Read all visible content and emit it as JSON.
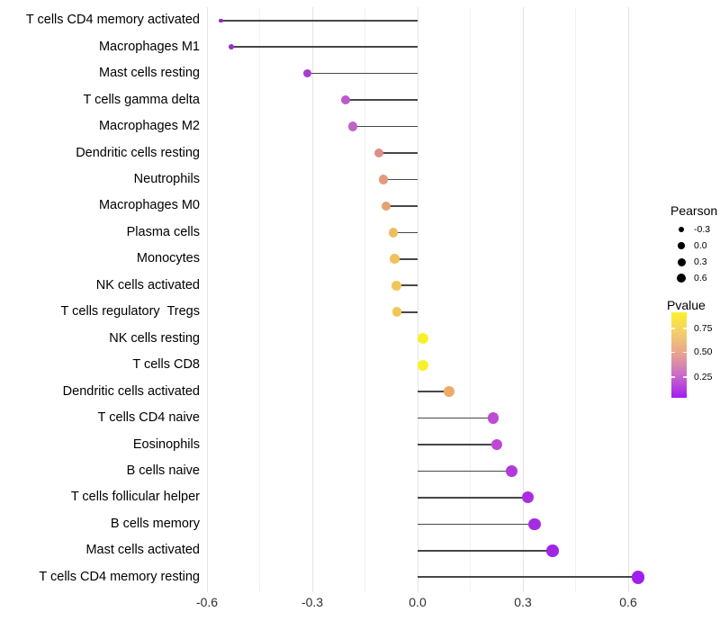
{
  "chart_data": {
    "type": "lollipop",
    "title": "",
    "xlabel": "",
    "ylabel": "",
    "x_tick_labels": [
      "-0.6",
      "-0.3",
      "0.0",
      "0.3",
      "0.6"
    ],
    "x_ticks": [
      -0.6,
      -0.3,
      0.0,
      0.3,
      0.6
    ],
    "x_minor_ticks": [
      -0.45,
      -0.15,
      0.15,
      0.45
    ],
    "xlim": [
      -0.62,
      0.68
    ],
    "grid": true,
    "rows": [
      {
        "label": "T cells CD4 memory activated",
        "pearson": -0.56,
        "dot_color": "#8e2ac6",
        "dot_radius": 2.2
      },
      {
        "label": "Macrophages M1",
        "pearson": -0.53,
        "dot_color": "#9730cb",
        "dot_radius": 3.0
      },
      {
        "label": "Mast cells resting",
        "pearson": -0.315,
        "dot_color": "#a83ccc",
        "dot_radius": 4.6
      },
      {
        "label": "T cells gamma delta",
        "pearson": -0.205,
        "dot_color": "#bc59cb",
        "dot_radius": 5.0
      },
      {
        "label": "Macrophages M2",
        "pearson": -0.185,
        "dot_color": "#c263c9",
        "dot_radius": 5.1
      },
      {
        "label": "Dendritic cells resting",
        "pearson": -0.11,
        "dot_color": "#dd9185",
        "dot_radius": 5.2
      },
      {
        "label": "Neutrophils",
        "pearson": -0.098,
        "dot_color": "#e39b79",
        "dot_radius": 5.25
      },
      {
        "label": "Macrophages M0",
        "pearson": -0.09,
        "dot_color": "#e6a072",
        "dot_radius": 5.3
      },
      {
        "label": "Plasma cells",
        "pearson": -0.069,
        "dot_color": "#edbe60",
        "dot_radius": 5.4
      },
      {
        "label": "Monocytes",
        "pearson": -0.066,
        "dot_color": "#efc25b",
        "dot_radius": 5.4
      },
      {
        "label": "NK cells activated",
        "pearson": -0.061,
        "dot_color": "#f0c657",
        "dot_radius": 5.45
      },
      {
        "label": "T cells regulatory  Tregs",
        "pearson": -0.059,
        "dot_color": "#f0c657",
        "dot_radius": 5.45
      },
      {
        "label": "NK cells resting",
        "pearson": 0.015,
        "dot_color": "#f8f127",
        "dot_radius": 6.0
      },
      {
        "label": "T cells CD8",
        "pearson": 0.015,
        "dot_color": "#f8f127",
        "dot_radius": 6.0
      },
      {
        "label": "Dendritic cells activated",
        "pearson": 0.09,
        "dot_color": "#efa966",
        "dot_radius": 6.1
      },
      {
        "label": "T cells CD4 naive",
        "pearson": 0.215,
        "dot_color": "#be4bd3",
        "dot_radius": 6.3
      },
      {
        "label": "Eosinophils",
        "pearson": 0.226,
        "dot_color": "#bc47d5",
        "dot_radius": 6.35
      },
      {
        "label": "B cells naive",
        "pearson": 0.269,
        "dot_color": "#b23ada",
        "dot_radius": 6.5
      },
      {
        "label": "T cells follicular helper",
        "pearson": 0.315,
        "dot_color": "#aa2edf",
        "dot_radius": 6.6
      },
      {
        "label": "B cells memory",
        "pearson": 0.333,
        "dot_color": "#a72ce1",
        "dot_radius": 6.65
      },
      {
        "label": "Mast cells activated",
        "pearson": 0.385,
        "dot_color": "#a026e7",
        "dot_radius": 6.8
      },
      {
        "label": "T cells CD4 memory resting",
        "pearson": 0.628,
        "dot_color": "#a01fef",
        "dot_radius": 7.4
      }
    ],
    "legend_size": {
      "title": "Pearson",
      "dot_color": "#000000",
      "entries": [
        {
          "label": "-0.3",
          "radius": 3.0
        },
        {
          "label": "0.0",
          "radius": 3.8
        },
        {
          "label": "0.3",
          "radius": 4.5
        },
        {
          "label": "0.6",
          "radius": 5.0
        }
      ]
    },
    "legend_color": {
      "title": "Pvalue",
      "labels": [
        "0.75",
        "0.50",
        "0.25"
      ],
      "label_positions": [
        0.19,
        0.47,
        0.76
      ],
      "gradient": [
        "#fbf22c",
        "#f3cc6e",
        "#e6a192",
        "#c667ca",
        "#a21cf2"
      ]
    }
  },
  "colors": {
    "background": "#ffffff",
    "stick": "#474747",
    "grid_major": "#e4e4e4",
    "grid_minor": "#f2f2f2",
    "axis_text": "#2f2f2f",
    "label_text": "#000000"
  }
}
